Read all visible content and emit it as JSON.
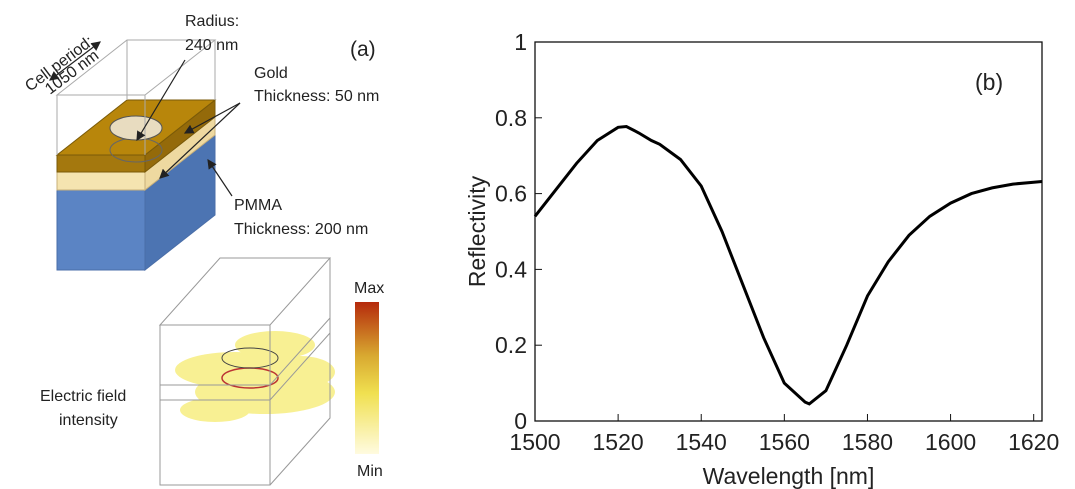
{
  "diagram": {
    "panel_label": "(a)",
    "cell_period_title": "Cell period:",
    "cell_period_value": "1050 nm",
    "radius_title": "Radius:",
    "radius_value": "240 nm",
    "gold_title": "Gold",
    "gold_thickness": "Thickness: 50 nm",
    "pmma_title": "PMMA",
    "pmma_thickness": "Thickness: 200 nm",
    "colorbar_max": "Max",
    "colorbar_min": "Min",
    "field_label_line1": "Electric field",
    "field_label_line2": "intensity"
  },
  "chart_data": {
    "type": "line",
    "annotation": "(b)",
    "xlabel": "Wavelength [nm]",
    "ylabel": "Reflectivity",
    "x": [
      1500,
      1505,
      1510,
      1515,
      1520,
      1522,
      1525,
      1528,
      1530,
      1535,
      1540,
      1545,
      1550,
      1555,
      1560,
      1565,
      1566,
      1570,
      1575,
      1580,
      1585,
      1590,
      1595,
      1600,
      1605,
      1610,
      1615,
      1620,
      1622
    ],
    "values": [
      0.54,
      0.61,
      0.68,
      0.74,
      0.775,
      0.777,
      0.76,
      0.74,
      0.73,
      0.69,
      0.62,
      0.5,
      0.36,
      0.22,
      0.1,
      0.05,
      0.045,
      0.08,
      0.2,
      0.33,
      0.42,
      0.49,
      0.54,
      0.575,
      0.6,
      0.615,
      0.625,
      0.63,
      0.632
    ],
    "color": "#000000",
    "xlim": [
      1500,
      1622
    ],
    "xticks": [
      1500,
      1520,
      1540,
      1560,
      1580,
      1600,
      1620
    ],
    "ylim": [
      0,
      1
    ],
    "yticks": [
      0,
      0.2,
      0.4,
      0.6,
      0.8,
      1
    ]
  }
}
